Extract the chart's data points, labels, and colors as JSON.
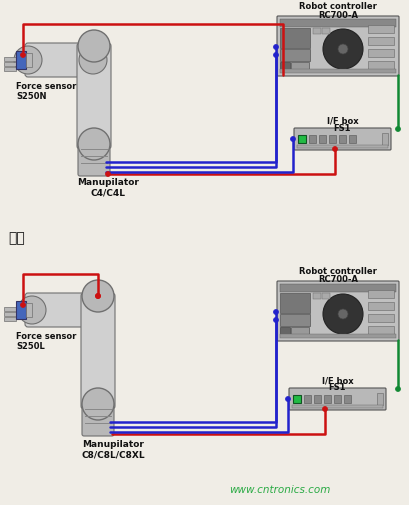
{
  "bg_color": "#f0ede6",
  "title_text": "标题",
  "watermark": "www.cntronics.com",
  "watermark_color": "#2aaa44",
  "red_color": "#cc1111",
  "blue_color": "#2222cc",
  "green_color": "#118833",
  "arm_light": "#d0d0d0",
  "arm_mid": "#b8b8b8",
  "arm_dark": "#909090",
  "arm_edge": "#707070",
  "controller_bg": "#b0b0b0",
  "controller_dark": "#444444",
  "ifbox_bg": "#b8b8b8",
  "blue_sensor": "#4466bb",
  "green_led": "#22bb44",
  "diag1": {
    "force_label": "Force sensor\nS250N",
    "manip_label": "Manupilator\nC4/C4L",
    "rc_label1": "Robot controller",
    "rc_label2": "RC700-A",
    "if_label1": "I/F box",
    "if_label2": "FS1"
  },
  "diag2": {
    "force_label": "Force sensor\nS250L",
    "manip_label": "Manupilator\nC8/C8L/C8XL",
    "rc_label1": "Robot controller",
    "rc_label2": "RC700-A",
    "if_label1": "I/F box",
    "if_label2": "FS1"
  }
}
